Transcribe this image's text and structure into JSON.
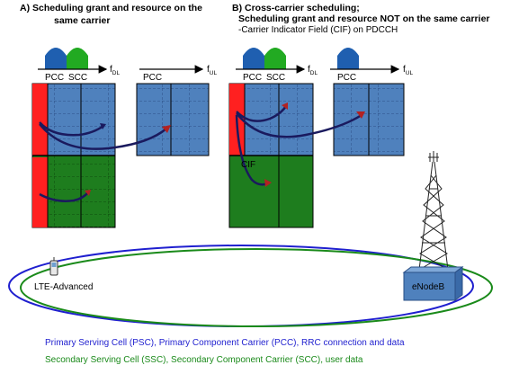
{
  "panel_a": {
    "title_line1": "A) Scheduling grant and resource on the",
    "title_line2": "same carrier",
    "pcc_label": "PCC",
    "scc_label": "SCC",
    "pcc_ul_label": "PCC",
    "f_dl": "f",
    "f_dl_sub": "DL",
    "f_ul": "f",
    "f_ul_sub": "UL"
  },
  "panel_b": {
    "title_line1": "B) Cross-carrier scheduling;",
    "title_line2": "Scheduling grant and resource NOT on the same carrier",
    "title_line3": "-Carrier Indicator Field (CIF) on PDCCH",
    "pcc_label": "PCC",
    "scc_label": "SCC",
    "pcc_ul_label": "PCC",
    "f_dl": "f",
    "f_dl_sub": "DL",
    "f_ul": "f",
    "f_ul_sub": "UL",
    "cif_label": "CIF"
  },
  "ue_label": "LTE-Advanced",
  "enodeb_label": "eNodeB",
  "legend": {
    "primary": "Primary Serving Cell (PSC), Primary Component Carrier (PCC), RRC connection and data",
    "secondary": "Secondary Serving Cell (SSC), Secondary Component Carrier (SCC), user data"
  },
  "colors": {
    "pcc_blue": "#4f81bd",
    "scc_green": "#1e7d1e",
    "control_red": "#ff2020",
    "arrow_navy": "#1a1a5e",
    "primary_text": "#1f1fcf",
    "secondary_text": "#1a8a1a"
  }
}
